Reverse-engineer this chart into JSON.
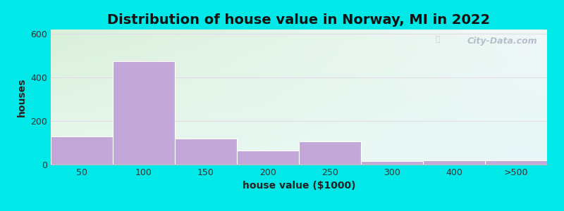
{
  "title": "Distribution of house value in Norway, MI in 2022",
  "xlabel": "house value ($1000)",
  "ylabel": "houses",
  "bar_labels": [
    "50",
    "100",
    "150",
    "200",
    "250",
    "300",
    "400",
    ">500"
  ],
  "bar_heights": [
    130,
    475,
    120,
    65,
    105,
    15,
    20,
    20
  ],
  "bar_color": "#c2a8d8",
  "ylim": [
    0,
    620
  ],
  "yticks": [
    0,
    200,
    400,
    600
  ],
  "background_topleft": "#daf0da",
  "background_topright": "#f0f8f8",
  "background_bottomleft": "#e8f8ee",
  "background_bottomright": "#e8f8f8",
  "outer_background": "#00e8e8",
  "grid_color": "#e0dde8",
  "title_fontsize": 14,
  "axis_label_fontsize": 10,
  "tick_fontsize": 9,
  "watermark_text": "City-Data.com"
}
